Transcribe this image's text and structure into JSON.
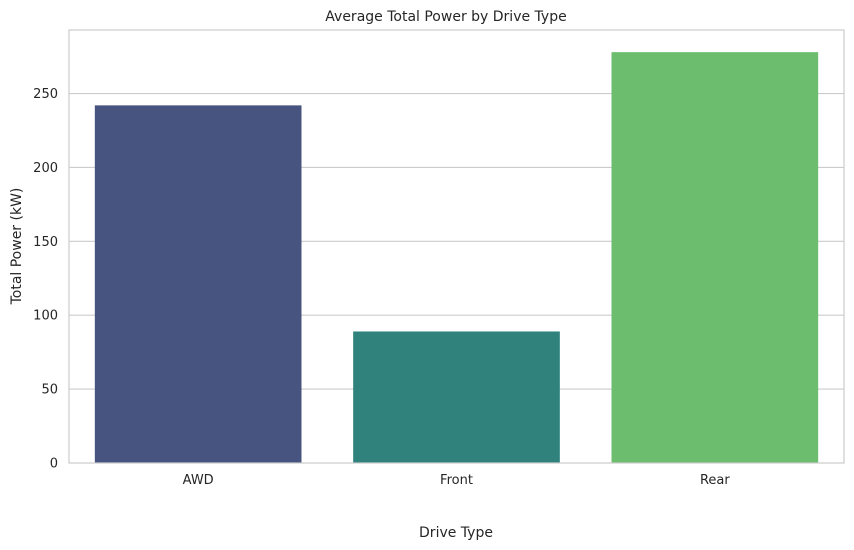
{
  "chart_data": {
    "type": "bar",
    "title": "Average Total Power by Drive Type",
    "xlabel": "Drive Type",
    "ylabel": "Total Power (kW)",
    "categories": [
      "AWD",
      "Front",
      "Rear"
    ],
    "values": [
      242,
      89,
      278
    ],
    "colors": [
      "#46547f",
      "#2f837c",
      "#6cbd6e"
    ],
    "ylim": [
      0,
      293
    ],
    "yticks": [
      0,
      50,
      100,
      150,
      200,
      250
    ],
    "grid": true
  }
}
